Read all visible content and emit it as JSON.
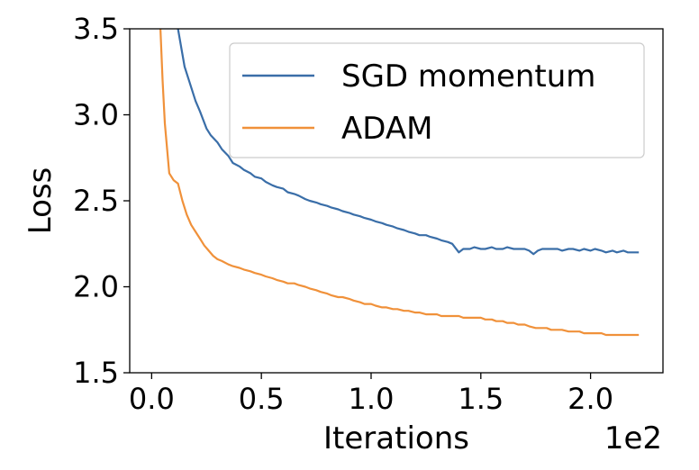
{
  "chart_data": {
    "type": "line",
    "xlabel": "Iterations",
    "ylabel": "Loss",
    "x_offset_label": "1e2",
    "xlim": [
      -0.1,
      2.33
    ],
    "ylim": [
      1.5,
      3.5
    ],
    "x_ticks": [
      0.0,
      0.5,
      1.0,
      1.5,
      2.0
    ],
    "x_tick_labels": [
      "0.0",
      "0.5",
      "1.0",
      "1.5",
      "2.0"
    ],
    "y_ticks": [
      1.5,
      2.0,
      2.5,
      3.0,
      3.5
    ],
    "y_tick_labels": [
      "1.5",
      "2.0",
      "2.5",
      "3.0",
      "3.5"
    ],
    "grid": false,
    "legend_position": "top-right",
    "series": [
      {
        "name": "SGD momentum",
        "color": "#3a6ea8",
        "x": [
          0.12,
          0.15,
          0.17,
          0.2,
          0.22,
          0.25,
          0.27,
          0.3,
          0.32,
          0.35,
          0.37,
          0.4,
          0.42,
          0.45,
          0.47,
          0.5,
          0.52,
          0.55,
          0.57,
          0.6,
          0.62,
          0.65,
          0.67,
          0.7,
          0.72,
          0.75,
          0.77,
          0.8,
          0.82,
          0.85,
          0.87,
          0.9,
          0.92,
          0.95,
          0.97,
          1.0,
          1.02,
          1.05,
          1.07,
          1.1,
          1.12,
          1.15,
          1.17,
          1.2,
          1.22,
          1.25,
          1.27,
          1.3,
          1.32,
          1.35,
          1.37,
          1.4,
          1.42,
          1.45,
          1.47,
          1.5,
          1.52,
          1.55,
          1.57,
          1.6,
          1.62,
          1.65,
          1.67,
          1.7,
          1.72,
          1.74,
          1.76,
          1.78,
          1.8,
          1.82,
          1.85,
          1.87,
          1.9,
          1.92,
          1.95,
          1.97,
          2.0,
          2.02,
          2.05,
          2.07,
          2.1,
          2.12,
          2.15,
          2.17,
          2.2,
          2.22
        ],
        "y": [
          3.5,
          3.28,
          3.2,
          3.08,
          3.02,
          2.92,
          2.88,
          2.84,
          2.8,
          2.76,
          2.72,
          2.7,
          2.68,
          2.66,
          2.64,
          2.63,
          2.61,
          2.59,
          2.58,
          2.57,
          2.55,
          2.54,
          2.53,
          2.51,
          2.5,
          2.49,
          2.48,
          2.47,
          2.46,
          2.45,
          2.44,
          2.43,
          2.42,
          2.41,
          2.4,
          2.39,
          2.38,
          2.37,
          2.36,
          2.35,
          2.34,
          2.33,
          2.32,
          2.31,
          2.3,
          2.3,
          2.29,
          2.28,
          2.27,
          2.26,
          2.25,
          2.2,
          2.22,
          2.22,
          2.23,
          2.22,
          2.22,
          2.23,
          2.22,
          2.22,
          2.23,
          2.22,
          2.22,
          2.22,
          2.21,
          2.19,
          2.21,
          2.22,
          2.22,
          2.22,
          2.22,
          2.21,
          2.22,
          2.22,
          2.21,
          2.22,
          2.21,
          2.22,
          2.21,
          2.2,
          2.21,
          2.2,
          2.21,
          2.2,
          2.2,
          2.2
        ]
      },
      {
        "name": "ADAM",
        "color": "#f0913a",
        "x": [
          0.04,
          0.05,
          0.06,
          0.08,
          0.1,
          0.12,
          0.14,
          0.16,
          0.18,
          0.2,
          0.22,
          0.24,
          0.26,
          0.28,
          0.3,
          0.32,
          0.35,
          0.37,
          0.4,
          0.42,
          0.45,
          0.47,
          0.5,
          0.52,
          0.55,
          0.57,
          0.6,
          0.62,
          0.65,
          0.67,
          0.7,
          0.72,
          0.75,
          0.77,
          0.8,
          0.82,
          0.85,
          0.87,
          0.9,
          0.92,
          0.95,
          0.97,
          1.0,
          1.02,
          1.05,
          1.07,
          1.1,
          1.12,
          1.15,
          1.17,
          1.2,
          1.22,
          1.25,
          1.27,
          1.3,
          1.32,
          1.35,
          1.37,
          1.4,
          1.42,
          1.45,
          1.47,
          1.5,
          1.52,
          1.55,
          1.57,
          1.6,
          1.62,
          1.65,
          1.67,
          1.7,
          1.72,
          1.75,
          1.77,
          1.8,
          1.82,
          1.85,
          1.87,
          1.9,
          1.92,
          1.95,
          1.97,
          2.0,
          2.02,
          2.05,
          2.07,
          2.1,
          2.12,
          2.15,
          2.17,
          2.2,
          2.22
        ],
        "y": [
          3.5,
          3.2,
          2.95,
          2.66,
          2.62,
          2.6,
          2.5,
          2.42,
          2.36,
          2.32,
          2.28,
          2.24,
          2.21,
          2.18,
          2.16,
          2.15,
          2.13,
          2.12,
          2.11,
          2.1,
          2.09,
          2.08,
          2.07,
          2.06,
          2.05,
          2.04,
          2.03,
          2.02,
          2.02,
          2.01,
          2.0,
          1.99,
          1.98,
          1.97,
          1.96,
          1.95,
          1.94,
          1.94,
          1.93,
          1.92,
          1.91,
          1.9,
          1.9,
          1.89,
          1.88,
          1.88,
          1.87,
          1.87,
          1.86,
          1.86,
          1.85,
          1.85,
          1.84,
          1.84,
          1.84,
          1.83,
          1.83,
          1.83,
          1.83,
          1.82,
          1.82,
          1.82,
          1.82,
          1.81,
          1.81,
          1.8,
          1.8,
          1.79,
          1.79,
          1.78,
          1.78,
          1.77,
          1.76,
          1.76,
          1.76,
          1.75,
          1.75,
          1.75,
          1.74,
          1.74,
          1.74,
          1.73,
          1.73,
          1.73,
          1.73,
          1.72,
          1.72,
          1.72,
          1.72,
          1.72,
          1.72,
          1.72
        ]
      }
    ]
  }
}
